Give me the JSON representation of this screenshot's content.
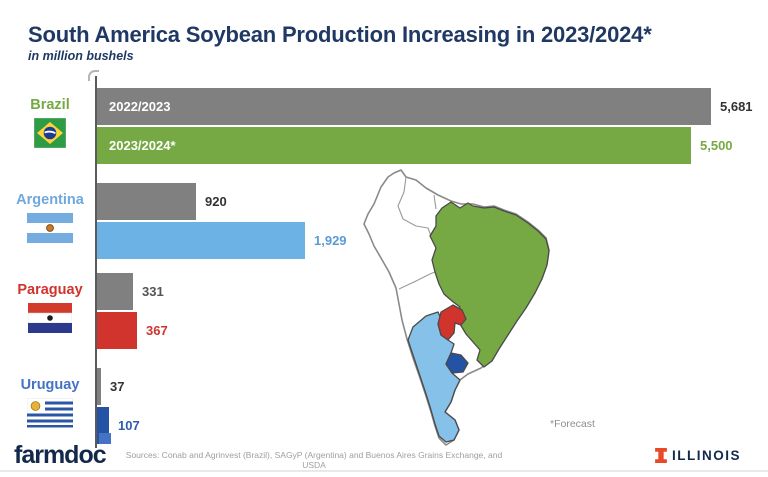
{
  "header": {
    "title": "South America Soybean Production Increasing in 2023/2024*",
    "subtitle": "in million bushels"
  },
  "chart_data": {
    "type": "bar",
    "orientation": "horizontal",
    "unit": "million bushels",
    "xlim": [
      0,
      5800
    ],
    "grid": false,
    "categories": [
      "Brazil",
      "Argentina",
      "Paraguay",
      "Uruguay"
    ],
    "series": [
      {
        "name": "2022/2023",
        "color": "#808080",
        "values": [
          5681,
          920,
          331,
          37
        ]
      },
      {
        "name": "2023/2024*",
        "values": [
          5500,
          1929,
          367,
          107
        ]
      }
    ],
    "groups": [
      {
        "id": "brazil",
        "country": "Brazil",
        "label_color": "#76A943",
        "accent": "#76A943",
        "values": [
          5681,
          5500
        ],
        "value_labels": [
          "5,681",
          "5,500"
        ],
        "value_colors": [
          "#333333",
          "#76A943"
        ],
        "show_series_labels": true
      },
      {
        "id": "argentina",
        "country": "Argentina",
        "label_color": "#6FA8DC",
        "accent": "#6CB2E5",
        "values": [
          920,
          1929
        ],
        "value_labels": [
          "920",
          "1,929"
        ],
        "value_colors": [
          "#333333",
          "#5B9BD5"
        ],
        "show_series_labels": false
      },
      {
        "id": "paraguay",
        "country": "Paraguay",
        "label_color": "#D0342C",
        "accent": "#D0342C",
        "values": [
          331,
          367
        ],
        "value_labels": [
          "331",
          "367"
        ],
        "value_colors": [
          "#555555",
          "#D0342C"
        ],
        "show_series_labels": false
      },
      {
        "id": "uruguay",
        "country": "Uruguay",
        "label_color": "#4472C4",
        "accent": "#2453A6",
        "values": [
          37,
          107
        ],
        "value_labels": [
          "37",
          "107"
        ],
        "value_colors": [
          "#333333",
          "#2F5CAB"
        ],
        "show_series_labels": false
      }
    ]
  },
  "map": {
    "highlighted_countries": [
      "Brazil",
      "Argentina",
      "Paraguay",
      "Uruguay"
    ],
    "colors": {
      "brazil": "#76A943",
      "argentina": "#86C1EA",
      "paraguay": "#D0342C",
      "uruguay": "#2453A6",
      "other": "#FFFFFF",
      "border": "#8a8a8a"
    }
  },
  "footer": {
    "forecast_note": "*Forecast",
    "sources": "Sources: Conab and Agrinvest (Brazil), SAGyP (Argentina) and Buenos Aires Grains Exchange, and USDA",
    "farmdoc_label": "farmdoc",
    "illinois_label": "ILLINOIS"
  },
  "colors": {
    "title_navy": "#1F3864",
    "bar_gray": "#808080",
    "brazil_green": "#76A943",
    "argentina_blue": "#6CB2E5",
    "paraguay_red": "#D0342C",
    "uruguay_blue": "#2453A6",
    "illinois_navy": "#13294B",
    "illinois_orange": "#E84A27"
  }
}
